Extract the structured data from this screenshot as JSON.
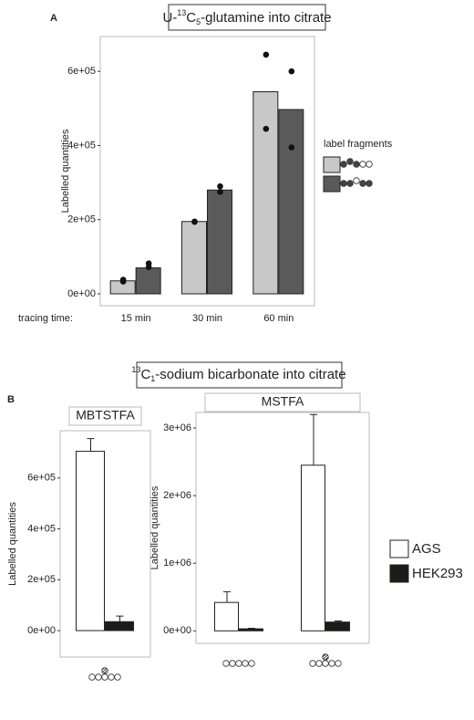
{
  "chart_data": [
    {
      "type": "bar",
      "panel_label": "A",
      "title": {
        "prefix": "U-",
        "sup": "13",
        "mid": "C",
        "sub": "5",
        "suffix": "-glutamine into citrate"
      },
      "ylabel": "Labelled quantities",
      "xlabel": "tracing time:",
      "legend_title": "label fragments",
      "categories": [
        "15 min",
        "30 min",
        "60 min"
      ],
      "series": [
        {
          "color": "#c8c8c8",
          "values": [
            35000,
            195000,
            545000
          ],
          "points": [
            [
              38000,
              33000
            ],
            [
              195000,
              194000
            ],
            [
              645000,
              445000
            ]
          ]
        },
        {
          "color": "#5a5a5a",
          "values": [
            70000,
            280000,
            497000
          ],
          "points": [
            [
              82000,
              72000
            ],
            [
              290000,
              275000
            ],
            [
              600000,
              395000
            ]
          ]
        }
      ],
      "ylim": [
        -32000,
        694000
      ],
      "yticks": [
        {
          "value": 0,
          "label": "0e+00"
        },
        {
          "value": 200000,
          "label": "2e+05"
        },
        {
          "value": 400000,
          "label": "4e+05"
        },
        {
          "value": 600000,
          "label": "6e+05"
        }
      ]
    },
    {
      "type": "bar",
      "panel_label": "B",
      "group_title": {
        "sup": "13",
        "mid": "C",
        "sub": "1",
        "suffix": "-sodium bicarbonate into citrate"
      },
      "title": "MBTSTFA",
      "ylabel": "Labelled quantities",
      "categories": [
        null
      ],
      "series": [
        {
          "color": "#ffffff",
          "values": [
            705000
          ],
          "errors": [
            50000
          ]
        },
        {
          "color": "#1e1a18",
          "values": [
            35000
          ],
          "errors": [
            22000
          ]
        }
      ],
      "ylim": [
        -104000,
        786000
      ],
      "yticks": [
        {
          "value": 0,
          "label": "0e+00"
        },
        {
          "value": 200000,
          "label": "2e+05"
        },
        {
          "value": 400000,
          "label": "4e+05"
        },
        {
          "value": 600000,
          "label": "6e+05"
        }
      ]
    },
    {
      "type": "bar",
      "title": "MSTFA",
      "ylabel": "Labelled quantities",
      "categories": [
        null,
        null
      ],
      "series": [
        {
          "name": "AGS",
          "color": "#ffffff",
          "values": [
            420000,
            2450000
          ],
          "errors": [
            160000,
            750000
          ]
        },
        {
          "name": "HEK293",
          "color": "#1e1a18",
          "values": [
            30000,
            130000
          ],
          "errors": [
            8000,
            15000
          ]
        }
      ],
      "ylim": [
        -185000,
        3230000
      ],
      "yticks": [
        {
          "value": 0,
          "label": "0e+00"
        },
        {
          "value": 1000000,
          "label": "1e+06"
        },
        {
          "value": 2000000,
          "label": "2e+06"
        },
        {
          "value": 3000000,
          "label": "3e+06"
        }
      ]
    }
  ]
}
